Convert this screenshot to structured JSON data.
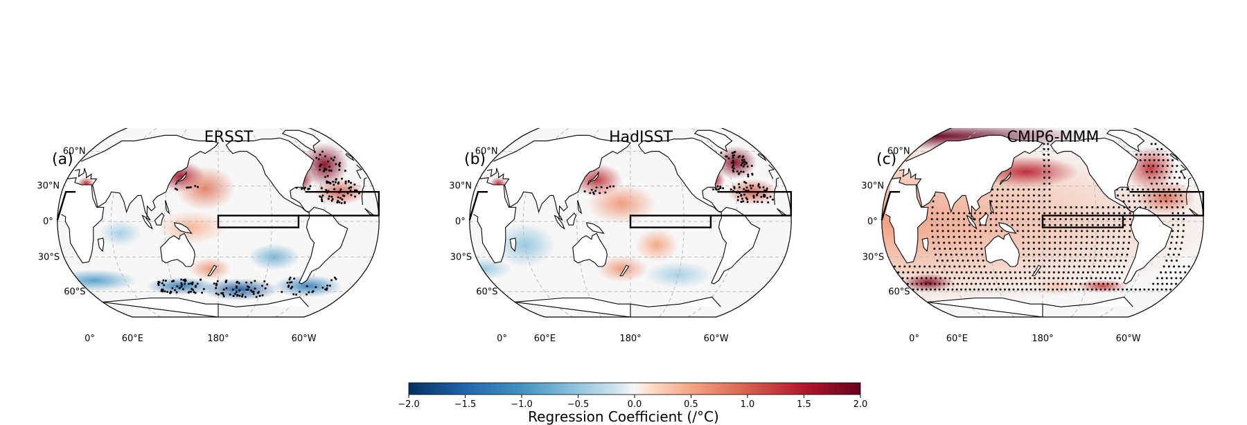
{
  "panels": [
    {
      "letter": "(a)",
      "title": "ERSST",
      "stipple": "sparse",
      "blobs": [
        {
          "lon": 135,
          "lat": 38,
          "rx": 28,
          "ry": 14,
          "v": 1.6
        },
        {
          "lon": 165,
          "lat": 28,
          "rx": 35,
          "ry": 20,
          "v": 0.8
        },
        {
          "lon": -45,
          "lat": 48,
          "rx": 28,
          "ry": 20,
          "v": 1.8
        },
        {
          "lon": -40,
          "lat": 25,
          "rx": 30,
          "ry": 12,
          "v": 1.0
        },
        {
          "lon": -80,
          "lat": 35,
          "rx": 12,
          "ry": 10,
          "v": 1.6
        },
        {
          "lon": 25,
          "lat": 32,
          "rx": 10,
          "ry": 6,
          "v": 1.4
        },
        {
          "lon": 150,
          "lat": -5,
          "rx": 40,
          "ry": 15,
          "v": 0.4
        },
        {
          "lon": 70,
          "lat": -10,
          "rx": 25,
          "ry": 12,
          "v": -0.4
        },
        {
          "lon": 20,
          "lat": -50,
          "rx": 50,
          "ry": 10,
          "v": -0.9
        },
        {
          "lon": 130,
          "lat": -55,
          "rx": 40,
          "ry": 8,
          "v": -1.3
        },
        {
          "lon": -150,
          "lat": -58,
          "rx": 45,
          "ry": 10,
          "v": -1.6
        },
        {
          "lon": -60,
          "lat": -55,
          "rx": 40,
          "ry": 10,
          "v": -1.2
        },
        {
          "lon": -115,
          "lat": -30,
          "rx": 30,
          "ry": 12,
          "v": -0.7
        },
        {
          "lon": 170,
          "lat": -40,
          "rx": 25,
          "ry": 10,
          "v": 0.6
        }
      ]
    },
    {
      "letter": "(b)",
      "title": "HadISST",
      "stipple": "sparse",
      "blobs": [
        {
          "lon": 140,
          "lat": 35,
          "rx": 30,
          "ry": 15,
          "v": 1.3
        },
        {
          "lon": 170,
          "lat": 15,
          "rx": 40,
          "ry": 18,
          "v": 0.6
        },
        {
          "lon": -45,
          "lat": 50,
          "rx": 25,
          "ry": 15,
          "v": 1.8
        },
        {
          "lon": -40,
          "lat": 25,
          "rx": 30,
          "ry": 12,
          "v": 1.0
        },
        {
          "lon": -80,
          "lat": 35,
          "rx": 12,
          "ry": 10,
          "v": 1.5
        },
        {
          "lon": 25,
          "lat": 32,
          "rx": 10,
          "ry": 6,
          "v": 1.4
        },
        {
          "lon": 60,
          "lat": -20,
          "rx": 35,
          "ry": 20,
          "v": -0.5
        },
        {
          "lon": -150,
          "lat": -20,
          "rx": 25,
          "ry": 15,
          "v": 0.5
        },
        {
          "lon": 170,
          "lat": -40,
          "rx": 30,
          "ry": 12,
          "v": 0.6
        },
        {
          "lon": -120,
          "lat": -45,
          "rx": 40,
          "ry": 12,
          "v": -0.4
        },
        {
          "lon": 0,
          "lat": -40,
          "rx": 35,
          "ry": 10,
          "v": -0.5
        }
      ]
    },
    {
      "letter": "(c)",
      "title": "CMIP6-MMM",
      "stipple": "dense",
      "blobs": [
        {
          "lon": 0,
          "lat": 0,
          "rx": 400,
          "ry": 80,
          "v": 0.55
        },
        {
          "lon": 160,
          "lat": 42,
          "rx": 60,
          "ry": 14,
          "v": 1.4
        },
        {
          "lon": -45,
          "lat": 45,
          "rx": 30,
          "ry": 20,
          "v": 1.3
        },
        {
          "lon": -40,
          "lat": 20,
          "rx": 35,
          "ry": 15,
          "v": 0.9
        },
        {
          "lon": 0,
          "lat": 75,
          "rx": 180,
          "ry": 12,
          "v": 2.0
        },
        {
          "lon": 30,
          "lat": -52,
          "rx": 30,
          "ry": 8,
          "v": 1.8
        },
        {
          "lon": -100,
          "lat": -55,
          "rx": 30,
          "ry": 6,
          "v": 1.2
        },
        {
          "lon": -160,
          "lat": -55,
          "rx": 30,
          "ry": 8,
          "v": 0.3
        }
      ]
    }
  ],
  "lat_labels": [
    "60°N",
    "30°N",
    "0°",
    "30°S",
    "60°S"
  ],
  "lon_labels": [
    "0°",
    "60°E",
    "180°",
    "60°W"
  ],
  "colorbar": {
    "ticks": [
      "−2.0",
      "−1.5",
      "−1.0",
      "−0.5",
      "0.0",
      "0.5",
      "1.0",
      "1.5",
      "2.0"
    ],
    "min": -2.0,
    "max": 2.0,
    "colormap": "RdBu_r",
    "label": "Regression Coefficient (/°C)"
  },
  "colors": {
    "neg_max": "#053061",
    "zero": "#f7f7f7",
    "pos_max": "#67001f",
    "land": "#ffffff",
    "box": "#000000"
  }
}
